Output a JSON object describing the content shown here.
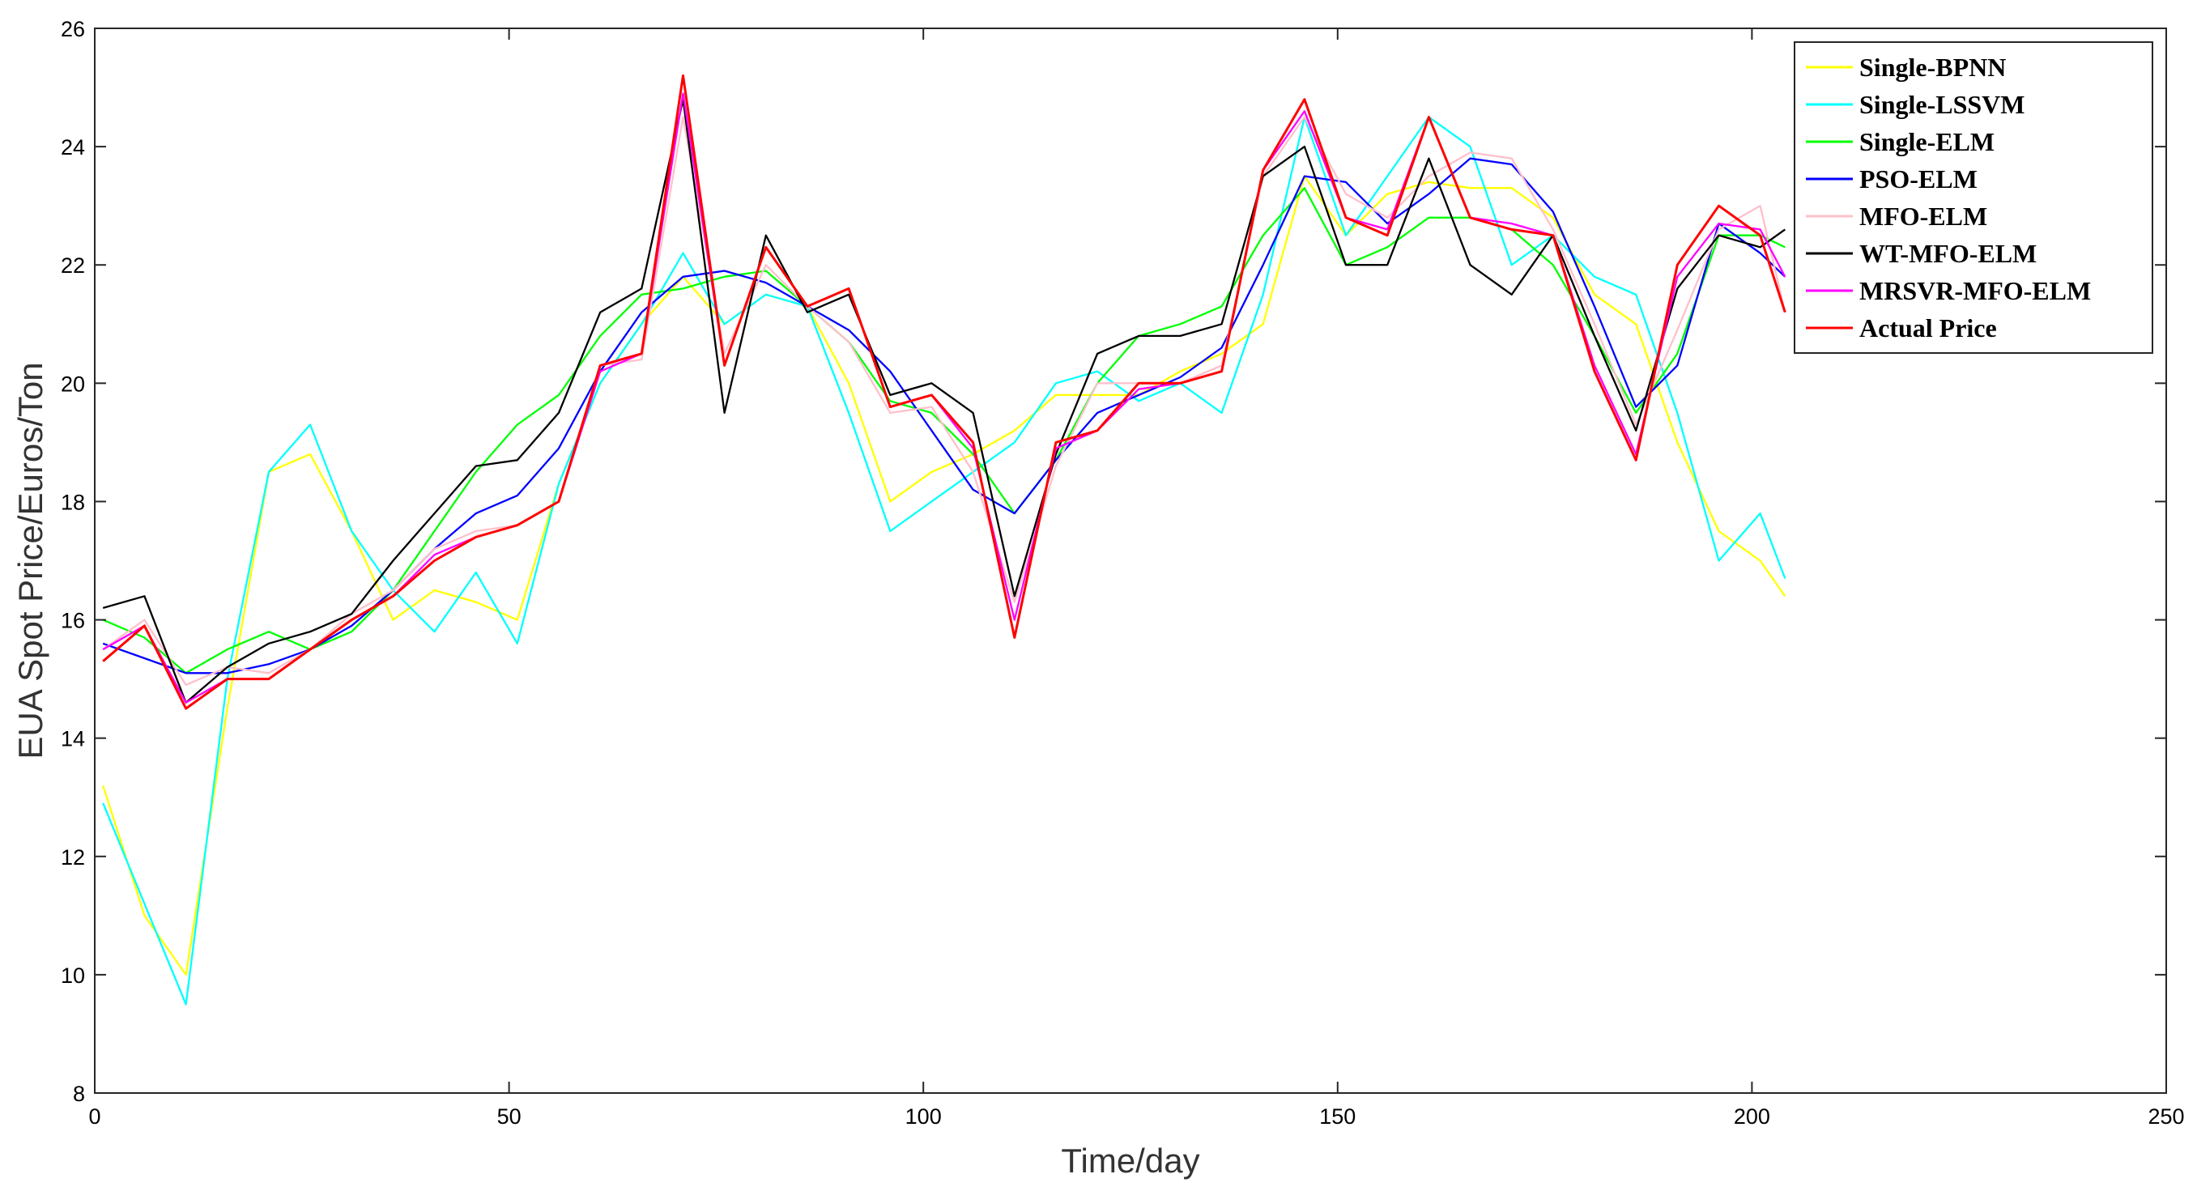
{
  "chart_data": {
    "type": "line",
    "xlabel": "Time/day",
    "ylabel": "EUA Spot Price/Euros/Ton",
    "xlim": [
      0,
      250
    ],
    "ylim": [
      8,
      26
    ],
    "xticks": [
      "0",
      "50",
      "100",
      "150",
      "200",
      "250"
    ],
    "yticks": [
      "8",
      "10",
      "12",
      "14",
      "16",
      "18",
      "20",
      "22",
      "24",
      "26"
    ],
    "grid": false,
    "legend_position": "top-right",
    "x": [
      1,
      6,
      11,
      16,
      21,
      26,
      31,
      36,
      41,
      46,
      51,
      56,
      61,
      66,
      71,
      76,
      81,
      86,
      91,
      96,
      101,
      106,
      111,
      116,
      121,
      126,
      131,
      136,
      141,
      146,
      151,
      156,
      161,
      166,
      171,
      176,
      181,
      186,
      191,
      196,
      201,
      204
    ],
    "series": [
      {
        "name": "Single-BPNN",
        "color": "#ffff00",
        "values": [
          13.2,
          11.0,
          10.0,
          14.5,
          18.5,
          18.8,
          17.5,
          16.0,
          16.5,
          16.3,
          16.0,
          18.3,
          20.0,
          21.0,
          21.8,
          21.0,
          21.5,
          21.3,
          20.0,
          18.0,
          18.5,
          18.8,
          19.2,
          19.8,
          19.8,
          19.8,
          20.2,
          20.5,
          21.0,
          23.5,
          22.5,
          23.2,
          23.4,
          23.3,
          23.3,
          22.8,
          21.5,
          21.0,
          19.0,
          17.5,
          17.0,
          16.4
        ]
      },
      {
        "name": "Single-LSSVM",
        "color": "#00ffff",
        "values": [
          12.9,
          11.2,
          9.5,
          15.0,
          18.5,
          19.3,
          17.5,
          16.5,
          15.8,
          16.8,
          15.6,
          18.3,
          20.0,
          21.0,
          22.2,
          21.0,
          21.5,
          21.3,
          19.5,
          17.5,
          18.0,
          18.5,
          19.0,
          20.0,
          20.2,
          19.7,
          20.0,
          19.5,
          21.5,
          24.5,
          22.5,
          23.5,
          24.5,
          24.0,
          22.0,
          22.5,
          21.8,
          21.5,
          19.5,
          17.0,
          17.8,
          16.7
        ]
      },
      {
        "name": "Single-ELM",
        "color": "#00ff00",
        "values": [
          16.0,
          15.7,
          15.1,
          15.5,
          15.8,
          15.5,
          15.8,
          16.5,
          17.5,
          18.5,
          19.3,
          19.8,
          20.8,
          21.5,
          21.6,
          21.8,
          21.9,
          21.3,
          20.7,
          19.7,
          19.5,
          18.8,
          17.8,
          18.7,
          20.0,
          20.8,
          21.0,
          21.3,
          22.5,
          23.3,
          22.0,
          22.3,
          22.8,
          22.8,
          22.6,
          22.0,
          20.8,
          19.5,
          20.5,
          22.5,
          22.5,
          22.3
        ]
      },
      {
        "name": "PSO-ELM",
        "color": "#0000ff",
        "values": [
          15.6,
          15.35,
          15.1,
          15.1,
          15.25,
          15.5,
          15.9,
          16.5,
          17.2,
          17.8,
          18.1,
          18.9,
          20.2,
          21.2,
          21.8,
          21.9,
          21.7,
          21.3,
          20.9,
          20.2,
          19.2,
          18.2,
          17.8,
          18.7,
          19.5,
          19.8,
          20.1,
          20.6,
          22.0,
          23.5,
          23.4,
          22.7,
          23.2,
          23.8,
          23.7,
          22.9,
          21.3,
          19.6,
          20.3,
          22.7,
          22.2,
          21.8
        ]
      },
      {
        "name": "MFO-ELM",
        "color": "#ffc0cb",
        "values": [
          15.5,
          16.0,
          14.9,
          15.2,
          15.1,
          15.5,
          16.1,
          16.5,
          17.2,
          17.5,
          17.6,
          18.0,
          20.3,
          20.4,
          24.5,
          20.5,
          22.0,
          21.3,
          20.7,
          19.5,
          19.6,
          18.5,
          16.3,
          18.6,
          20.0,
          20.0,
          20.0,
          20.3,
          23.5,
          24.5,
          23.2,
          22.8,
          23.5,
          23.9,
          23.8,
          22.6,
          21.0,
          19.3,
          20.9,
          22.6,
          23.0,
          21.2
        ]
      },
      {
        "name": "WT-MFO-ELM",
        "color": "#000000",
        "values": [
          16.2,
          16.4,
          14.6,
          15.2,
          15.6,
          15.8,
          16.1,
          17.0,
          17.8,
          18.6,
          18.7,
          19.5,
          21.2,
          21.6,
          24.8,
          19.5,
          22.5,
          21.2,
          21.5,
          19.8,
          20.0,
          19.5,
          16.4,
          18.8,
          20.5,
          20.8,
          20.8,
          21.0,
          23.5,
          24.0,
          22.0,
          22.0,
          23.8,
          22.0,
          21.5,
          22.5,
          20.8,
          19.2,
          21.6,
          22.5,
          22.3,
          22.6
        ]
      },
      {
        "name": "MRSVR-MFO-ELM",
        "color": "#ff00ff",
        "values": [
          15.5,
          15.9,
          14.6,
          15.0,
          15.0,
          15.5,
          16.0,
          16.4,
          17.1,
          17.4,
          17.6,
          18.0,
          20.2,
          20.5,
          24.9,
          20.3,
          22.3,
          21.3,
          21.6,
          19.6,
          19.8,
          18.9,
          16.0,
          18.9,
          19.2,
          19.9,
          20.0,
          20.2,
          23.6,
          24.6,
          22.8,
          22.6,
          24.5,
          22.8,
          22.7,
          22.5,
          20.3,
          18.8,
          21.8,
          22.7,
          22.6,
          21.8
        ]
      },
      {
        "name": "Actual Price",
        "color": "#ff0000",
        "values": [
          15.3,
          15.9,
          14.5,
          15.0,
          15.0,
          15.5,
          16.0,
          16.4,
          17.0,
          17.4,
          17.6,
          18.0,
          20.3,
          20.5,
          25.2,
          20.3,
          22.3,
          21.3,
          21.6,
          19.6,
          19.8,
          19.0,
          15.7,
          19.0,
          19.2,
          20.0,
          20.0,
          20.2,
          23.6,
          24.8,
          22.8,
          22.5,
          24.5,
          22.8,
          22.6,
          22.5,
          20.2,
          18.7,
          22.0,
          23.0,
          22.5,
          21.2
        ]
      }
    ]
  }
}
